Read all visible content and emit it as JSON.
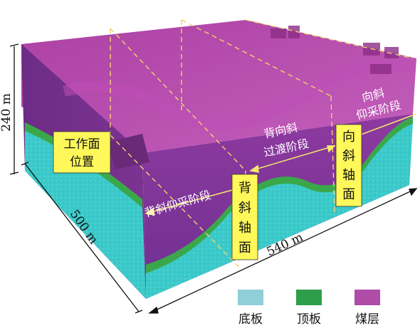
{
  "dimensions": {
    "height": "240 m",
    "depth": "500 m",
    "length": "540 m"
  },
  "labels": {
    "workface_line1": "工作面",
    "workface_line2": "位置",
    "anticline_axis": [
      "背",
      "斜",
      "轴",
      "面"
    ],
    "syncline_axis": [
      "向",
      "斜",
      "轴",
      "面"
    ],
    "anticline_stage": "背斜仰采阶段",
    "transition_line1": "背向斜",
    "transition_line2": "过渡阶段",
    "syncline_stage_line1": "向斜",
    "syncline_stage_line2": "仰采阶段"
  },
  "legend": [
    {
      "label": "底板",
      "color": "#8ecfd8"
    },
    {
      "label": "顶板",
      "color": "#2f9e4a"
    },
    {
      "label": "煤层",
      "color": "#b04ca8"
    }
  ],
  "colors": {
    "floor": "#3fcfcf",
    "roof": "#3aa84a",
    "coal": "#a23aa8",
    "coal_dark": "#7a2a86",
    "label_bg": "#fff85a",
    "axis_line": "#f5d76e",
    "arrow": "#f0e060"
  }
}
